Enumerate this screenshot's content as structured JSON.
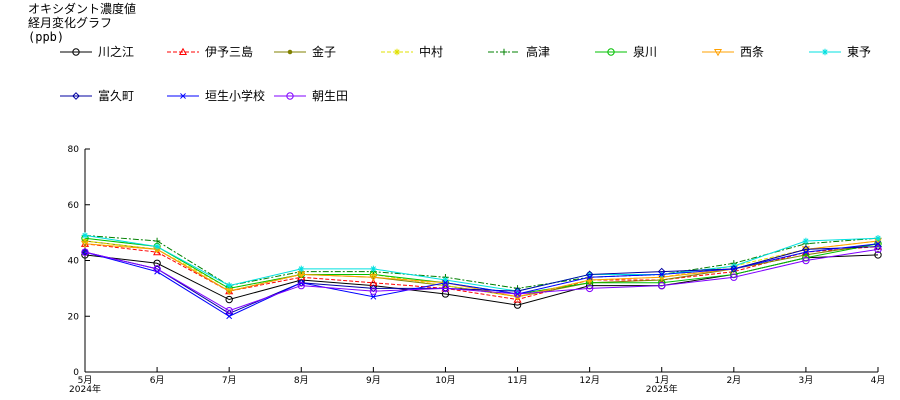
{
  "chart_data": {
    "type": "line",
    "title_lines": [
      "オキシダント濃度値",
      "経月変化グラフ",
      "(ppb)"
    ],
    "categories": [
      "5月",
      "6月",
      "7月",
      "8月",
      "9月",
      "10月",
      "11月",
      "12月",
      "1月",
      "2月",
      "3月",
      "4月"
    ],
    "year_labels": [
      {
        "index": 0,
        "text": "2024年"
      },
      {
        "index": 8,
        "text": "2025年"
      }
    ],
    "ylim": [
      0,
      80
    ],
    "yticks": [
      0,
      20,
      40,
      60,
      80
    ],
    "grid": false,
    "legend_position": "top",
    "series": [
      {
        "name": "川之江",
        "color": "#000000",
        "marker": "circle",
        "dash": "",
        "values": [
          42,
          39,
          26,
          33,
          31,
          28,
          24,
          31,
          31,
          35,
          41,
          42
        ]
      },
      {
        "name": "伊予三島",
        "color": "#ff0000",
        "marker": "triangle",
        "dash": "4,2",
        "values": [
          46,
          43,
          29,
          34,
          32,
          30,
          26,
          33,
          33,
          36,
          43,
          45
        ]
      },
      {
        "name": "金子",
        "color": "#808000",
        "marker": "dot",
        "dash": "",
        "values": [
          47,
          44,
          29,
          35,
          34,
          31,
          27,
          32,
          33,
          37,
          42,
          46
        ]
      },
      {
        "name": "中村",
        "color": "#e0e000",
        "marker": "star",
        "dash": "4,2",
        "values": [
          47,
          44,
          30,
          35,
          35,
          31,
          27,
          33,
          34,
          38,
          44,
          47
        ]
      },
      {
        "name": "高津",
        "color": "#008000",
        "marker": "cross",
        "dash": "6,2,2,2",
        "values": [
          49,
          47,
          31,
          36,
          36,
          34,
          30,
          34,
          35,
          39,
          46,
          48
        ]
      },
      {
        "name": "泉川",
        "color": "#00c000",
        "marker": "circle",
        "dash": "",
        "values": [
          48,
          45,
          30,
          35,
          35,
          32,
          28,
          32,
          32,
          35,
          41,
          46
        ]
      },
      {
        "name": "西条",
        "color": "#ffa000",
        "marker": "invtriangle",
        "dash": "",
        "values": [
          46,
          44,
          29,
          35,
          34,
          32,
          27,
          33,
          34,
          37,
          44,
          47
        ]
      },
      {
        "name": "東予",
        "color": "#00e0e0",
        "marker": "star",
        "dash": "",
        "values": [
          49,
          45,
          31,
          37,
          37,
          33,
          29,
          35,
          35,
          38,
          47,
          48
        ]
      },
      {
        "name": "富久町",
        "color": "#0000a0",
        "marker": "diamond",
        "dash": "",
        "values": [
          43,
          37,
          21,
          32,
          30,
          30,
          29,
          35,
          36,
          37,
          44,
          45
        ]
      },
      {
        "name": "垣生小学校",
        "color": "#0000ff",
        "marker": "x",
        "dash": "",
        "values": [
          43,
          36,
          20,
          32,
          27,
          32,
          28,
          34,
          35,
          37,
          43,
          46
        ]
      },
      {
        "name": "朝生田",
        "color": "#8000ff",
        "marker": "circle",
        "dash": "",
        "values": [
          43,
          37,
          22,
          31,
          29,
          30,
          28,
          30,
          31,
          34,
          40,
          44
        ]
      }
    ]
  }
}
